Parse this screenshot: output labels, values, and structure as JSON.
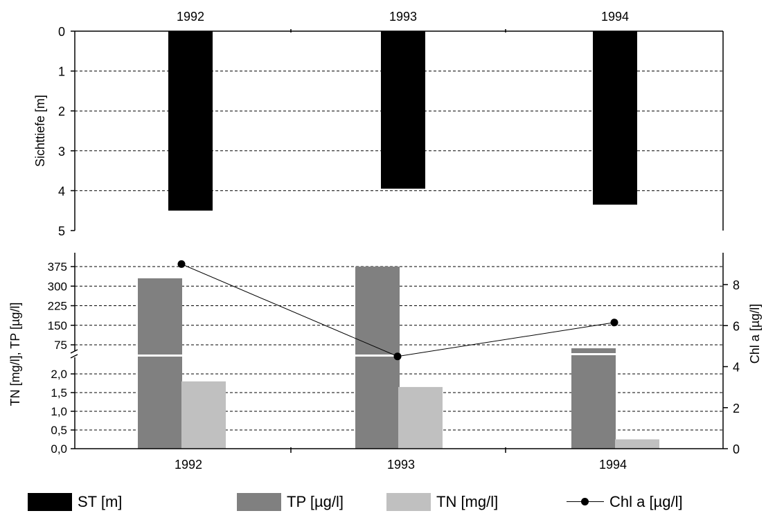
{
  "chart_data": [
    {
      "type": "bar",
      "categories": [
        "1992",
        "1993",
        "1994"
      ],
      "series": [
        {
          "name": "ST [m]",
          "values": [
            4.5,
            3.95,
            4.35
          ],
          "color": "#000000"
        }
      ],
      "ylabel": "Sichttiefe [m]",
      "ylim": [
        0,
        5
      ],
      "yticks": [
        "0",
        "1",
        "2",
        "3",
        "4",
        "5"
      ],
      "y_inverted": true,
      "x_axis_position": "top",
      "grid": true
    },
    {
      "type": "bar",
      "categories": [
        "1992",
        "1993",
        "1994"
      ],
      "series": [
        {
          "name": "TP [µg/l]",
          "values": [
            330,
            375,
            60
          ],
          "color": "#808080",
          "axis": "left-upper"
        },
        {
          "name": "TN [mg/l]",
          "values": [
            1.8,
            1.65,
            0.25
          ],
          "color": "#c0c0c0",
          "axis": "left-lower"
        },
        {
          "name": "Chl a [µg/l]",
          "type": "line",
          "values": [
            9.0,
            4.5,
            6.15
          ],
          "color": "#000000",
          "axis": "right"
        }
      ],
      "ylabel": "TN [mg/l], TP [µg/l]",
      "yticks_upper": [
        "75",
        "150",
        "225",
        "300",
        "375"
      ],
      "yticks_lower": [
        "0,0",
        "0,5",
        "1,0",
        "1,5",
        "2,0"
      ],
      "ylabel_right": "Chl a [µg/l]",
      "yticks_right": [
        "0",
        "2",
        "4",
        "6",
        "8"
      ],
      "ylim_right": [
        0,
        9.5
      ],
      "axis_break": true,
      "grid": true
    }
  ],
  "legend": [
    {
      "label": "ST [m]",
      "color": "#000000",
      "kind": "bar"
    },
    {
      "label": "TP [µg/l]",
      "color": "#808080",
      "kind": "bar"
    },
    {
      "label": "TN [mg/l]",
      "color": "#c0c0c0",
      "kind": "bar"
    },
    {
      "label": "Chl a [µg/l]",
      "color": "#000000",
      "kind": "line"
    }
  ]
}
